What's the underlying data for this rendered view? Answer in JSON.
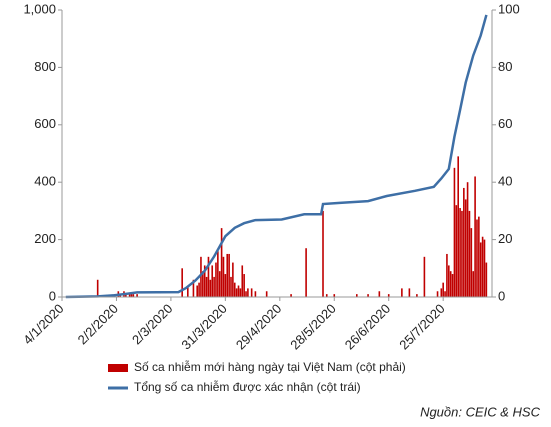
{
  "chart_data": {
    "type": "combo",
    "xticks": [
      "4/1/2020",
      "2/2/2020",
      "2/3/2020",
      "31/3/2020",
      "29/4/2020",
      "28/5/2020",
      "26/6/2020",
      "25/7/2020"
    ],
    "xlim": [
      "4/1/2020",
      "20/8/2020"
    ],
    "ylim": [
      0,
      1000
    ],
    "yticks": [
      0,
      200,
      400,
      600,
      800,
      {
        "value": 1000,
        "label": "1,000"
      }
    ],
    "y2lim": [
      0,
      100
    ],
    "y2ticks": [
      0,
      20,
      40,
      60,
      80,
      100
    ],
    "series": [
      {
        "name": "Số ca nhiễm mới hàng ngày tại Việt Nam (cột phải)",
        "type": "bar",
        "axis": "y2",
        "color": "#c00000",
        "x": [
          "23/1/2020",
          "1/2/2020",
          "3/2/2020",
          "4/2/2020",
          "6/2/2020",
          "7/2/2020",
          "9/2/2020",
          "10/2/2020",
          "11/2/2020",
          "13/2/2020",
          "8/3/2020",
          "11/3/2020",
          "14/3/2020",
          "16/3/2020",
          "17/3/2020",
          "18/3/2020",
          "19/3/2020",
          "20/3/2020",
          "21/3/2020",
          "22/3/2020",
          "23/3/2020",
          "24/3/2020",
          "25/3/2020",
          "26/3/2020",
          "27/3/2020",
          "28/3/2020",
          "29/3/2020",
          "30/3/2020",
          "31/3/2020",
          "1/4/2020",
          "2/4/2020",
          "3/4/2020",
          "4/4/2020",
          "5/4/2020",
          "6/4/2020",
          "7/4/2020",
          "8/4/2020",
          "9/4/2020",
          "10/4/2020",
          "11/4/2020",
          "12/4/2020",
          "14/4/2020",
          "16/4/2020",
          "22/4/2020",
          "5/5/2020",
          "13/5/2020",
          "22/5/2020",
          "24/5/2020",
          "28/5/2020",
          "9/6/2020",
          "15/6/2020",
          "21/6/2020",
          "26/6/2020",
          "3/7/2020",
          "7/7/2020",
          "11/7/2020",
          "15/7/2020",
          "22/7/2020",
          "24/7/2020",
          "25/7/2020",
          "26/7/2020",
          "27/7/2020",
          "28/7/2020",
          "29/7/2020",
          "30/7/2020",
          "31/7/2020",
          "1/8/2020",
          "2/8/2020",
          "3/8/2020",
          "4/8/2020",
          "5/8/2020",
          "6/8/2020",
          "7/8/2020",
          "8/8/2020",
          "9/8/2020",
          "10/8/2020",
          "11/8/2020",
          "12/8/2020",
          "13/8/2020",
          "14/8/2020",
          "15/8/2020",
          "16/8/2020",
          "17/8/2020"
        ],
        "values": [
          6,
          1,
          2,
          1,
          2,
          1,
          1,
          1,
          1,
          1,
          10,
          4,
          6,
          4,
          5,
          14,
          9,
          11,
          7,
          14,
          6,
          11,
          7,
          12,
          16,
          9,
          24,
          14,
          8,
          15,
          15,
          7,
          12,
          5,
          3,
          4,
          3,
          11,
          8,
          2,
          3,
          3,
          2,
          2,
          1,
          17,
          30,
          1,
          1,
          1,
          1,
          2,
          1,
          3,
          3,
          1,
          14,
          2,
          3,
          5,
          2,
          15,
          11,
          9,
          8,
          45,
          32,
          49,
          31,
          30,
          38,
          34,
          40,
          30,
          24,
          9,
          42,
          27,
          28,
          19,
          21,
          20,
          12
        ]
      },
      {
        "name": "Tổng số ca nhiễm được xác nhận (cột trái)",
        "type": "line",
        "axis": "y",
        "color": "#3e6fa6",
        "x": [
          "6/1/2020",
          "23/1/2020",
          "1/2/2020",
          "13/2/2020",
          "6/3/2020",
          "10/3/2020",
          "15/3/2020",
          "20/3/2020",
          "25/3/2020",
          "31/3/2020",
          "5/4/2020",
          "10/4/2020",
          "16/4/2020",
          "30/4/2020",
          "12/5/2020",
          "21/5/2020",
          "22/5/2020",
          "31/5/2020",
          "15/6/2020",
          "25/6/2020",
          "10/7/2020",
          "20/7/2020",
          "24/7/2020",
          "28/7/2020",
          "31/7/2020",
          "3/8/2020",
          "6/8/2020",
          "10/8/2020",
          "14/8/2020",
          "17/8/2020"
        ],
        "values": [
          0,
          2,
          6,
          16,
          17,
          31,
          57,
          91,
          141,
          212,
          241,
          257,
          268,
          270,
          288,
          288,
          324,
          328,
          334,
          352,
          370,
          384,
          413,
          446,
          558,
          652,
          747,
          841,
          911,
          983
        ]
      }
    ],
    "source": "Nguồn: CEIC & HSC"
  }
}
